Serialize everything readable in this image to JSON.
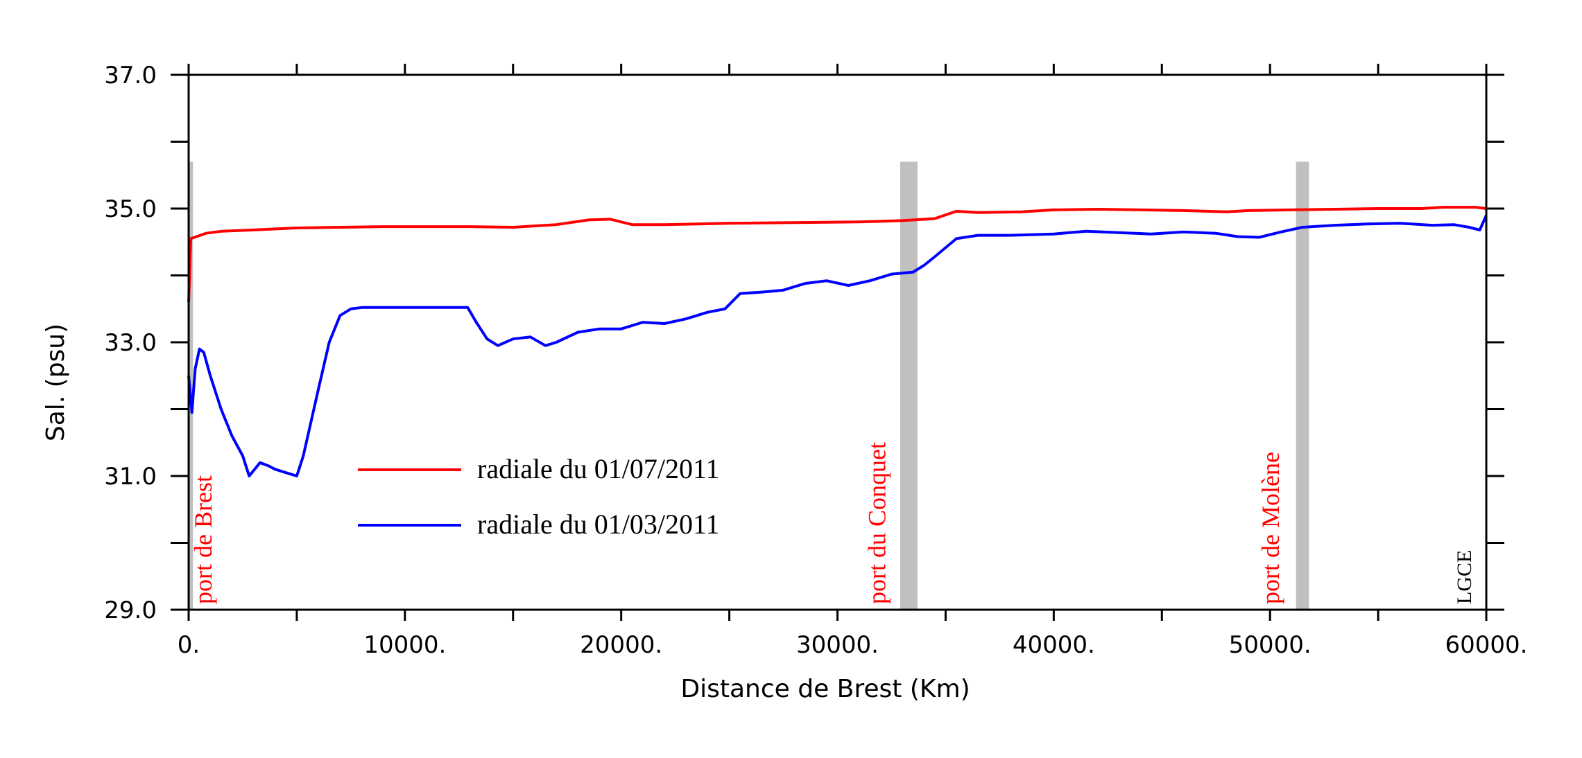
{
  "chart_data": {
    "type": "line",
    "xlabel": "Distance de Brest (Km)",
    "ylabel": "Sal. (psu)",
    "xlim": [
      0,
      60000
    ],
    "ylim": [
      29,
      37
    ],
    "x_ticks": [
      0,
      10000,
      20000,
      30000,
      40000,
      50000,
      60000
    ],
    "x_tick_labels": [
      "0.",
      "10000.",
      "20000.",
      "30000.",
      "40000.",
      "50000.",
      "60000."
    ],
    "y_ticks": [
      29,
      31,
      33,
      35,
      37
    ],
    "y_tick_labels": [
      "29.0",
      "31.0",
      "33.0",
      "35.0",
      "37.0"
    ],
    "grid": false,
    "legend_position": "lower-left",
    "series": [
      {
        "name": "radiale du 01/07/2011",
        "color": "#ff0000",
        "points": [
          [
            0,
            33.6
          ],
          [
            100,
            34.55
          ],
          [
            800,
            34.63
          ],
          [
            1500,
            34.66
          ],
          [
            3000,
            34.68
          ],
          [
            5000,
            34.71
          ],
          [
            7000,
            34.72
          ],
          [
            9000,
            34.73
          ],
          [
            11000,
            34.73
          ],
          [
            13000,
            34.73
          ],
          [
            15000,
            34.72
          ],
          [
            17000,
            34.76
          ],
          [
            18500,
            34.83
          ],
          [
            19500,
            34.84
          ],
          [
            20500,
            34.76
          ],
          [
            22000,
            34.76
          ],
          [
            25000,
            34.78
          ],
          [
            28000,
            34.79
          ],
          [
            31000,
            34.8
          ],
          [
            33000,
            34.82
          ],
          [
            34500,
            34.85
          ],
          [
            35500,
            34.96
          ],
          [
            36500,
            34.94
          ],
          [
            38500,
            34.95
          ],
          [
            40000,
            34.98
          ],
          [
            42000,
            34.99
          ],
          [
            44000,
            34.98
          ],
          [
            46000,
            34.97
          ],
          [
            48000,
            34.95
          ],
          [
            49000,
            34.97
          ],
          [
            51000,
            34.98
          ],
          [
            53000,
            34.99
          ],
          [
            55000,
            35.0
          ],
          [
            57000,
            35.0
          ],
          [
            58000,
            35.02
          ],
          [
            59500,
            35.02
          ],
          [
            60000,
            35.0
          ]
        ]
      },
      {
        "name": "radiale du 01/03/2011",
        "color": "#0000ff",
        "points": [
          [
            0,
            32.5
          ],
          [
            150,
            31.95
          ],
          [
            300,
            32.6
          ],
          [
            500,
            32.9
          ],
          [
            700,
            32.85
          ],
          [
            1000,
            32.5
          ],
          [
            1500,
            32.0
          ],
          [
            2000,
            31.6
          ],
          [
            2500,
            31.3
          ],
          [
            2800,
            31.0
          ],
          [
            3300,
            31.2
          ],
          [
            3700,
            31.15
          ],
          [
            4000,
            31.1
          ],
          [
            4500,
            31.05
          ],
          [
            5000,
            31.0
          ],
          [
            5300,
            31.3
          ],
          [
            6000,
            32.3
          ],
          [
            6500,
            33.0
          ],
          [
            7000,
            33.4
          ],
          [
            7500,
            33.5
          ],
          [
            8000,
            33.52
          ],
          [
            9000,
            33.52
          ],
          [
            10000,
            33.52
          ],
          [
            11000,
            33.52
          ],
          [
            12000,
            33.52
          ],
          [
            12900,
            33.52
          ],
          [
            13300,
            33.3
          ],
          [
            13800,
            33.05
          ],
          [
            14300,
            32.95
          ],
          [
            15000,
            33.05
          ],
          [
            15800,
            33.08
          ],
          [
            16500,
            32.95
          ],
          [
            17000,
            33.0
          ],
          [
            18000,
            33.15
          ],
          [
            19000,
            33.2
          ],
          [
            20000,
            33.2
          ],
          [
            21000,
            33.3
          ],
          [
            22000,
            33.28
          ],
          [
            23000,
            33.35
          ],
          [
            24000,
            33.45
          ],
          [
            24800,
            33.5
          ],
          [
            25500,
            33.73
          ],
          [
            26500,
            33.75
          ],
          [
            27500,
            33.78
          ],
          [
            28500,
            33.88
          ],
          [
            29500,
            33.92
          ],
          [
            30500,
            33.85
          ],
          [
            31500,
            33.92
          ],
          [
            32500,
            34.02
          ],
          [
            33500,
            34.05
          ],
          [
            34000,
            34.15
          ],
          [
            34500,
            34.28
          ],
          [
            35500,
            34.55
          ],
          [
            36500,
            34.6
          ],
          [
            38000,
            34.6
          ],
          [
            40000,
            34.62
          ],
          [
            41500,
            34.66
          ],
          [
            43000,
            34.64
          ],
          [
            44500,
            34.62
          ],
          [
            46000,
            34.65
          ],
          [
            47500,
            34.63
          ],
          [
            48500,
            34.58
          ],
          [
            49500,
            34.57
          ],
          [
            50500,
            34.65
          ],
          [
            51500,
            34.72
          ],
          [
            53000,
            34.75
          ],
          [
            54500,
            34.77
          ],
          [
            56000,
            34.78
          ],
          [
            57500,
            34.75
          ],
          [
            58500,
            34.76
          ],
          [
            59200,
            34.72
          ],
          [
            59700,
            34.68
          ],
          [
            60000,
            34.9
          ]
        ]
      }
    ],
    "annotations": [
      {
        "text": "port de Brest",
        "x": 100,
        "color": "#ff0000"
      },
      {
        "text": "port du Conquet",
        "x": 33300,
        "color": "#ff0000"
      },
      {
        "text": "port de Molène",
        "x": 51500,
        "color": "#ff0000"
      },
      {
        "text": "LGCE",
        "color": "#000000"
      }
    ],
    "port_bands": [
      [
        0,
        200
      ],
      [
        32900,
        33700
      ],
      [
        51200,
        51800
      ]
    ],
    "band_color": "#c0c0c0",
    "band_top_value": 35.7
  }
}
